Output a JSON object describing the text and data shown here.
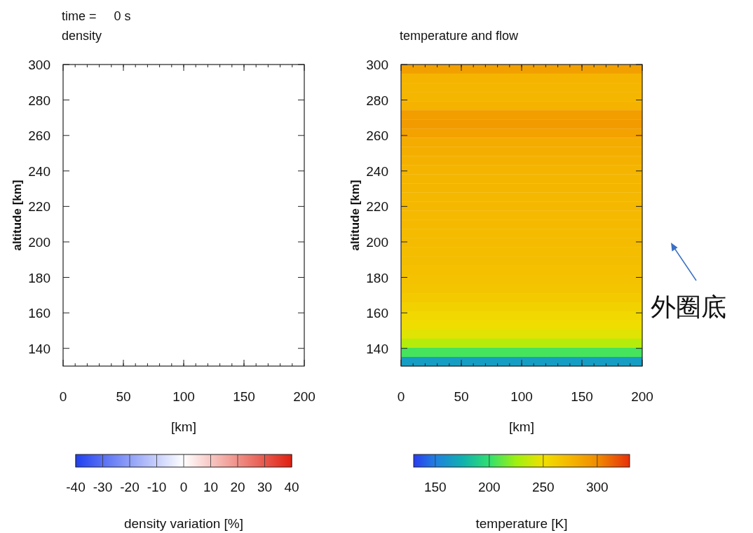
{
  "chart_data": [
    {
      "type": "heatmap",
      "title": "density",
      "annotations": [
        "time =     0 s"
      ],
      "xlabel": "[km]",
      "ylabel": "altitude [km]",
      "clabel": "density variation [%]",
      "cells": [
        [
          0
        ]
      ],
      "xlim": [
        0,
        200
      ],
      "xticks": [
        0,
        50,
        100,
        150,
        200
      ],
      "ylim": [
        130,
        300
      ],
      "yticks": [
        140,
        160,
        180,
        200,
        220,
        240,
        260,
        280,
        300
      ],
      "clim": [
        -40,
        40
      ],
      "cticks": [
        -40,
        -30,
        -20,
        -10,
        0,
        10,
        20,
        30,
        40
      ]
    },
    {
      "type": "heatmap",
      "title": "temperature and flow",
      "annotations": [
        "外圈底"
      ],
      "xlabel": "[km]",
      "ylabel": "altitude [km]",
      "clabel": "temperature [K]",
      "cells": [
        [
          288
        ],
        [
          276
        ],
        [
          275
        ],
        [
          275
        ],
        [
          277
        ],
        [
          290
        ],
        [
          291
        ],
        [
          287
        ],
        [
          281
        ],
        [
          280
        ],
        [
          278
        ],
        [
          276
        ],
        [
          275
        ],
        [
          275
        ],
        [
          274
        ],
        [
          274
        ],
        [
          273
        ],
        [
          273
        ],
        [
          272
        ],
        [
          272
        ],
        [
          271
        ],
        [
          270
        ],
        [
          269
        ],
        [
          268
        ],
        [
          266
        ],
        [
          263
        ],
        [
          259
        ],
        [
          255
        ],
        [
          252
        ],
        [
          245
        ],
        [
          232
        ],
        [
          205
        ],
        [
          165
        ]
      ],
      "xlim": [
        0,
        200
      ],
      "xticks": [
        0,
        50,
        100,
        150,
        200
      ],
      "ylim": [
        130,
        300
      ],
      "yticks": [
        140,
        160,
        180,
        200,
        220,
        240,
        260,
        280,
        300
      ],
      "clim": [
        130,
        330
      ],
      "cticks": [
        150,
        200,
        250,
        300
      ]
    }
  ]
}
